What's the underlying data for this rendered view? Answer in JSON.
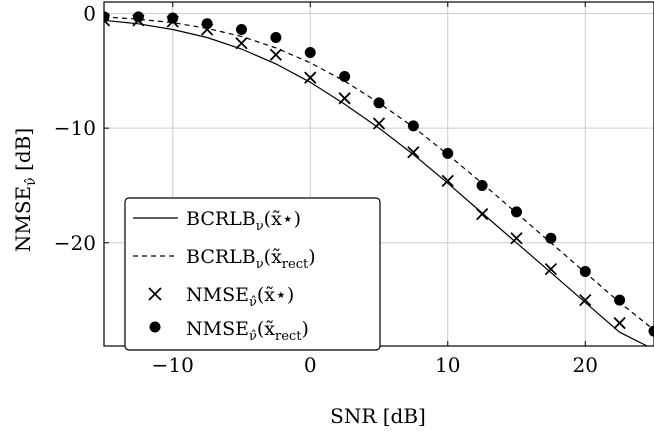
{
  "chart_data": {
    "type": "line",
    "xlabel": "SNR [dB]",
    "ylabel": "NMSE_ν̂ [dB]",
    "xlim": [
      -15,
      25
    ],
    "ylim": [
      -29,
      1
    ],
    "xticks": [
      -10,
      0,
      10,
      20
    ],
    "yticks": [
      0,
      -10,
      -20
    ],
    "xtick_labels": [
      "−10",
      "0",
      "10",
      "20"
    ],
    "ytick_labels": [
      "0",
      "−10",
      "−20"
    ],
    "grid": true,
    "legend_position": "bottom-left",
    "series": [
      {
        "name": "BCRLB_ν(x̃⋆)",
        "style": "solid",
        "x": [
          -15,
          -12.5,
          -10,
          -7.5,
          -5,
          -2.5,
          0,
          2.5,
          5,
          7.5,
          10,
          12.5,
          15,
          17.5,
          20,
          22.5,
          24.5
        ],
        "y": [
          -0.6,
          -0.9,
          -1.4,
          -2.1,
          -3.1,
          -4.4,
          -6.0,
          -7.9,
          -10.0,
          -12.3,
          -14.8,
          -17.4,
          -20.0,
          -22.6,
          -25.2,
          -27.8,
          -29.0
        ]
      },
      {
        "name": "BCRLB_ν(x̃_rect)",
        "style": "dashed",
        "x": [
          -15,
          -12.5,
          -10,
          -7.5,
          -5,
          -2.5,
          0,
          2.5,
          5,
          7.5,
          10,
          12.5,
          15,
          17.5,
          20,
          22.5,
          25
        ],
        "y": [
          -0.3,
          -0.5,
          -0.8,
          -1.3,
          -2.0,
          -3.0,
          -4.3,
          -5.9,
          -7.8,
          -9.9,
          -12.3,
          -14.8,
          -17.4,
          -20.0,
          -22.6,
          -25.2,
          -27.6
        ]
      },
      {
        "name": "NMSE_ν̂(x̃⋆)",
        "marker": "cross",
        "x": [
          -15,
          -12.5,
          -10,
          -7.5,
          -5,
          -2.5,
          0,
          2.5,
          5,
          7.5,
          10,
          12.5,
          15,
          17.5,
          20,
          22.5
        ],
        "y": [
          -0.6,
          -0.6,
          -0.7,
          -1.4,
          -2.6,
          -3.6,
          -5.6,
          -7.4,
          -9.6,
          -12.1,
          -14.6,
          -17.5,
          -19.6,
          -22.3,
          -25.0,
          -27.0
        ]
      },
      {
        "name": "NMSE_ν̂(x̃_rect)",
        "marker": "dot",
        "x": [
          -15,
          -12.5,
          -10,
          -7.5,
          -5,
          -2.5,
          0,
          2.5,
          5,
          7.5,
          10,
          12.5,
          15,
          17.5,
          20,
          22.5,
          25
        ],
        "y": [
          -0.3,
          -0.3,
          -0.4,
          -0.9,
          -1.4,
          -2.1,
          -3.4,
          -5.5,
          -7.8,
          -9.8,
          -12.2,
          -15.0,
          -17.3,
          -19.6,
          -22.5,
          -25.0,
          -27.7
        ]
      }
    ]
  }
}
